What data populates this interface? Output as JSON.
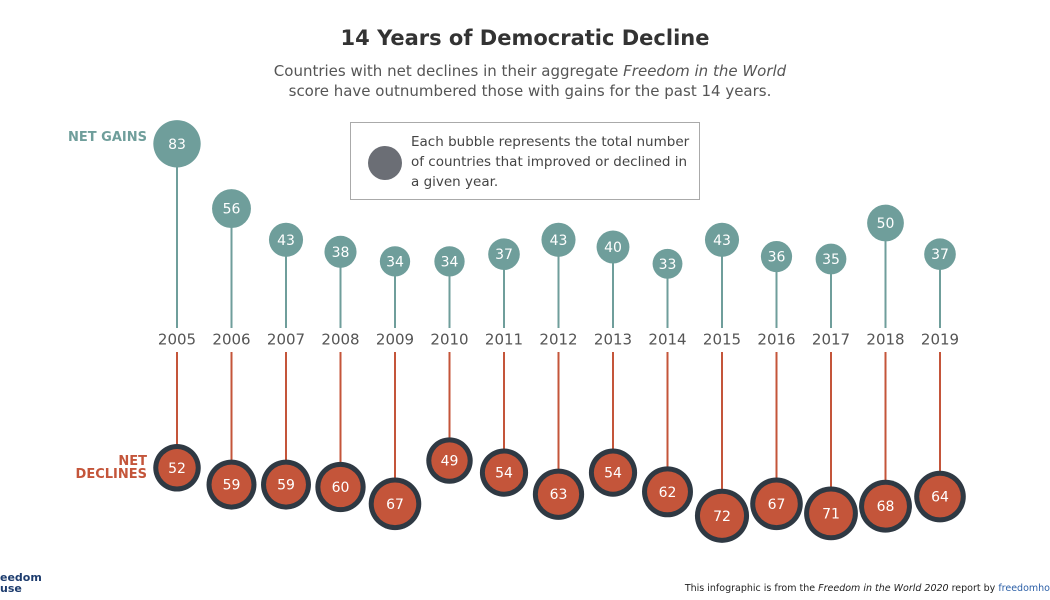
{
  "chart_data": {
    "type": "lollipop",
    "title": "14 Years of Democratic Decline",
    "subtitle": [
      "Countries with net declines in their aggregate ",
      "Freedom in the World",
      " score have outnumbered those with gains for the past 14 years."
    ],
    "note": "Each bubble represents the total number of countries that improved or declined in a given year.",
    "categories": [
      "2005",
      "2006",
      "2007",
      "2008",
      "2009",
      "2010",
      "2011",
      "2012",
      "2013",
      "2014",
      "2015",
      "2016",
      "2017",
      "2018",
      "2019"
    ],
    "series": [
      {
        "name": "NET GAINS",
        "color": "#6f9e9b",
        "values": [
          83,
          56,
          43,
          38,
          34,
          34,
          37,
          43,
          40,
          33,
          43,
          36,
          35,
          50,
          37
        ]
      },
      {
        "name": "NET DECLINES",
        "color": "#c4553a",
        "ring_color": "#2f3943",
        "values": [
          52,
          59,
          59,
          60,
          67,
          49,
          54,
          63,
          54,
          62,
          72,
          67,
          71,
          68,
          64
        ]
      }
    ],
    "footer": [
      "This infographic is from the ",
      "Freedom in the World 2020",
      " report by ",
      "freedomho"
    ],
    "logo": [
      "eedom",
      "use"
    ]
  }
}
